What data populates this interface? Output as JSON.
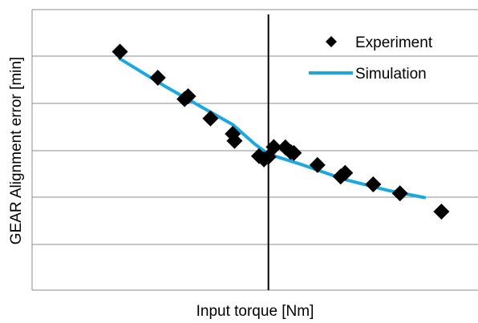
{
  "chart_data": {
    "type": "scatter",
    "title": "",
    "xlabel": "Input torque [Nm]",
    "ylabel": "GEAR Alignment error  [min]",
    "xlim": [
      0,
      100
    ],
    "ylim": [
      0,
      100
    ],
    "grid": "horizontal",
    "tick_labels_shown": false,
    "reference_line_x": 53,
    "legend_position": "top-right",
    "series": [
      {
        "name": "Experiment",
        "kind": "markers",
        "marker": "diamond",
        "color": "#000000",
        "x": [
          19.7,
          28.2,
          34.2,
          35.0,
          40.0,
          45.0,
          45.4,
          50.9,
          52.0,
          53.0,
          54.2,
          56.8,
          58.0,
          58.7,
          64.0,
          69.2,
          70.2,
          76.5,
          82.5,
          91.8
        ],
        "y": [
          85.0,
          75.7,
          68.1,
          69.1,
          61.2,
          55.7,
          53.2,
          47.8,
          46.6,
          47.5,
          51.0,
          50.9,
          49.2,
          48.9,
          44.6,
          40.5,
          41.8,
          37.7,
          34.5,
          28.0
        ]
      },
      {
        "name": "Simulation",
        "kind": "line",
        "color": "#1ba8e0",
        "x": [
          19.7,
          30,
          40,
          45,
          50,
          53,
          60,
          70,
          80,
          88
        ],
        "y": [
          82.5,
          72.5,
          63.5,
          59.0,
          52.0,
          48.5,
          45.0,
          39.5,
          35.5,
          33.0
        ]
      }
    ]
  }
}
